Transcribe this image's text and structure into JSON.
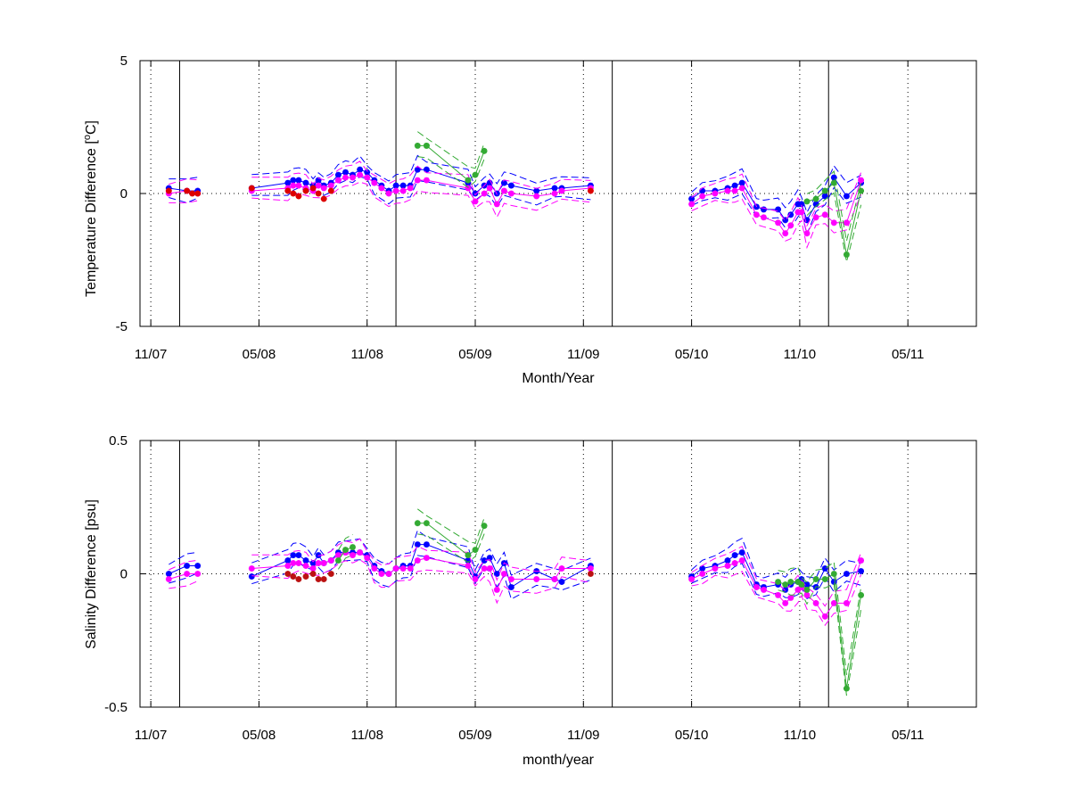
{
  "chart_data": [
    {
      "type": "line",
      "xlabel": "Month/Year",
      "ylabel_main": "Temperature Difference [",
      "ylabel_sup": "o",
      "ylabel_end": "C]",
      "ylim": [
        -5,
        5
      ],
      "yticks": [
        {
          "value": -5,
          "label": "-5"
        },
        {
          "value": 0,
          "label": "0"
        },
        {
          "value": 5,
          "label": "5"
        }
      ],
      "xticks": [
        {
          "value": 0,
          "label": "11/07"
        },
        {
          "value": 6,
          "label": "05/08"
        },
        {
          "value": 12,
          "label": "11/08"
        },
        {
          "value": 18,
          "label": "05/09"
        },
        {
          "value": 24,
          "label": "11/09"
        },
        {
          "value": 30,
          "label": "05/10"
        },
        {
          "value": 36,
          "label": "11/10"
        },
        {
          "value": 42,
          "label": "05/11"
        }
      ],
      "xlim": [
        -0.6,
        45.8
      ],
      "vlines": [
        1.6,
        13.6,
        25.6,
        37.6
      ],
      "grid": "dotted at x ticks and y=0",
      "series": [
        {
          "color": "#0000ff",
          "x": [
            1.0,
            2.0,
            2.6,
            5.6,
            7.6,
            7.9,
            8.2,
            8.6,
            9.0,
            9.3,
            9.6,
            10.0,
            10.4,
            10.8,
            11.2,
            11.6,
            12.0,
            12.4,
            12.8,
            13.2,
            13.6,
            14.0,
            14.4,
            14.8,
            15.3,
            17.6,
            18.0,
            18.5,
            18.8,
            19.2,
            19.6,
            20.0,
            21.4,
            22.4,
            22.8,
            24.4,
            30.0,
            30.6,
            31.3,
            32.0,
            32.4,
            32.8,
            33.6,
            34.0,
            34.8,
            35.2,
            35.5,
            35.9,
            36.1,
            36.4,
            36.9,
            37.4,
            37.9,
            38.6,
            39.4
          ],
          "y": [
            0.2,
            0.1,
            0.1,
            0.2,
            0.4,
            0.5,
            0.5,
            0.4,
            0.3,
            0.5,
            0.3,
            0.4,
            0.7,
            0.8,
            0.7,
            0.9,
            0.8,
            0.5,
            0.3,
            0.1,
            0.3,
            0.3,
            0.3,
            0.9,
            0.9,
            0.4,
            0.0,
            0.3,
            0.4,
            0.0,
            0.4,
            0.3,
            0.1,
            0.2,
            0.2,
            0.3,
            -0.2,
            0.1,
            0.1,
            0.2,
            0.3,
            0.4,
            -0.5,
            -0.6,
            -0.6,
            -1.0,
            -0.8,
            -0.4,
            -0.4,
            -1.0,
            -0.4,
            -0.1,
            0.6,
            -0.1,
            0.4
          ]
        },
        {
          "color": "#ff00ff",
          "x": [
            1.0,
            2.0,
            2.6,
            5.6,
            7.6,
            7.9,
            8.2,
            8.6,
            9.0,
            9.3,
            9.6,
            10.0,
            10.4,
            10.8,
            11.2,
            11.6,
            12.0,
            12.4,
            12.8,
            13.2,
            13.6,
            14.0,
            14.4,
            14.8,
            15.3,
            17.6,
            18.0,
            18.5,
            18.8,
            19.2,
            19.6,
            20.0,
            21.4,
            22.4,
            22.8,
            24.4,
            30.0,
            30.6,
            31.3,
            32.0,
            32.4,
            32.8,
            33.6,
            34.0,
            34.8,
            35.2,
            35.5,
            35.9,
            36.1,
            36.4,
            36.9,
            37.4,
            37.9,
            38.6,
            39.4
          ],
          "y": [
            0.0,
            0.1,
            0.0,
            0.1,
            0.2,
            0.3,
            0.3,
            0.2,
            0.1,
            0.3,
            0.2,
            0.3,
            0.5,
            0.6,
            0.6,
            0.7,
            0.6,
            0.4,
            0.2,
            0.0,
            0.1,
            0.1,
            0.2,
            0.5,
            0.5,
            0.2,
            -0.3,
            0.0,
            0.2,
            -0.4,
            0.1,
            0.0,
            -0.1,
            0.0,
            0.1,
            0.2,
            -0.4,
            -0.1,
            0.0,
            0.1,
            0.1,
            0.2,
            -0.8,
            -0.9,
            -1.1,
            -1.5,
            -1.2,
            -0.7,
            -0.7,
            -1.5,
            -0.9,
            -0.8,
            -1.1,
            -1.1,
            0.5
          ]
        },
        {
          "color": "#33aa33",
          "x": [
            14.8,
            15.3,
            15.3,
            17.6,
            18.0,
            18.5,
            36.4,
            36.9,
            37.4,
            37.9,
            38.6,
            39.4
          ],
          "y": [
            1.8,
            1.8,
            1.8,
            0.5,
            0.7,
            1.6,
            -0.3,
            -0.2,
            0.1,
            0.4,
            -2.3,
            0.1
          ]
        },
        {
          "color": "#dd0000",
          "x": [
            1.0,
            2.0,
            2.3,
            2.6,
            5.6,
            7.6,
            7.9,
            8.2,
            8.6,
            9.0,
            9.3,
            9.6,
            10.0,
            24.4
          ],
          "y": [
            0.1,
            0.1,
            0.0,
            0.0,
            0.2,
            0.1,
            0.0,
            -0.1,
            0.1,
            0.2,
            0.0,
            -0.2,
            0.1,
            0.1
          ]
        }
      ]
    },
    {
      "type": "line",
      "xlabel": "month/year",
      "ylabel_main": "Salinity Difference [psu]",
      "ylim": [
        -0.5,
        0.5
      ],
      "yticks": [
        {
          "value": -0.5,
          "label": "-0.5"
        },
        {
          "value": 0,
          "label": "0"
        },
        {
          "value": 0.5,
          "label": "0.5"
        }
      ],
      "xticks": [
        {
          "value": 0,
          "label": "11/07"
        },
        {
          "value": 6,
          "label": "05/08"
        },
        {
          "value": 12,
          "label": "11/08"
        },
        {
          "value": 18,
          "label": "05/09"
        },
        {
          "value": 24,
          "label": "11/09"
        },
        {
          "value": 30,
          "label": "05/10"
        },
        {
          "value": 36,
          "label": "11/10"
        },
        {
          "value": 42,
          "label": "05/11"
        }
      ],
      "xlim": [
        -0.6,
        45.8
      ],
      "vlines": [
        1.6,
        13.6,
        25.6,
        37.6
      ],
      "grid": "dotted at x ticks and y=0",
      "series": [
        {
          "color": "#0000ff",
          "x": [
            1.0,
            2.0,
            2.6,
            5.6,
            7.6,
            7.9,
            8.2,
            8.6,
            9.0,
            9.3,
            9.6,
            10.0,
            10.4,
            10.8,
            11.2,
            11.6,
            12.0,
            12.4,
            12.8,
            13.2,
            13.6,
            14.0,
            14.4,
            14.8,
            15.3,
            17.6,
            18.0,
            18.5,
            18.8,
            19.2,
            19.6,
            20.0,
            21.4,
            22.4,
            22.8,
            24.4,
            30.0,
            30.6,
            31.3,
            32.0,
            32.4,
            32.8,
            33.6,
            34.0,
            34.8,
            35.2,
            35.5,
            35.9,
            36.1,
            36.4,
            36.9,
            37.4,
            37.9,
            38.6,
            39.4
          ],
          "y": [
            0.0,
            0.03,
            0.03,
            -0.01,
            0.05,
            0.07,
            0.07,
            0.05,
            0.04,
            0.07,
            0.04,
            0.05,
            0.08,
            0.08,
            0.08,
            0.08,
            0.07,
            0.03,
            0.01,
            0.0,
            0.02,
            0.03,
            0.03,
            0.11,
            0.11,
            0.05,
            -0.01,
            0.05,
            0.06,
            0.0,
            0.04,
            -0.05,
            0.01,
            -0.02,
            -0.03,
            0.03,
            -0.01,
            0.02,
            0.03,
            0.05,
            0.07,
            0.08,
            -0.04,
            -0.05,
            -0.04,
            -0.06,
            -0.04,
            -0.03,
            -0.02,
            -0.04,
            -0.05,
            0.02,
            -0.03,
            0.0,
            0.01
          ]
        },
        {
          "color": "#ff00ff",
          "x": [
            1.0,
            2.0,
            2.6,
            5.6,
            7.6,
            7.9,
            8.2,
            8.6,
            9.0,
            9.3,
            9.6,
            10.0,
            10.4,
            10.8,
            11.2,
            11.6,
            12.0,
            12.4,
            12.8,
            13.2,
            13.6,
            14.0,
            14.4,
            14.8,
            15.3,
            17.6,
            18.0,
            18.5,
            18.8,
            19.2,
            19.6,
            20.0,
            21.4,
            22.4,
            22.8,
            24.4,
            30.0,
            30.6,
            31.3,
            32.0,
            32.4,
            32.8,
            33.6,
            34.0,
            34.8,
            35.2,
            35.5,
            35.9,
            36.1,
            36.4,
            36.9,
            37.4,
            37.9,
            38.6,
            39.4
          ],
          "y": [
            -0.02,
            0.0,
            0.0,
            0.02,
            0.03,
            0.04,
            0.04,
            0.03,
            0.02,
            0.04,
            0.04,
            0.05,
            0.07,
            0.08,
            0.07,
            0.08,
            0.06,
            0.02,
            0.0,
            0.0,
            0.02,
            0.02,
            0.02,
            0.05,
            0.06,
            0.03,
            -0.02,
            0.02,
            0.02,
            -0.06,
            0.0,
            -0.02,
            -0.02,
            -0.02,
            0.02,
            0.02,
            -0.02,
            0.0,
            0.02,
            0.03,
            0.04,
            0.05,
            -0.05,
            -0.06,
            -0.08,
            -0.11,
            -0.09,
            -0.06,
            -0.05,
            -0.08,
            -0.11,
            -0.16,
            -0.11,
            -0.11,
            0.05
          ]
        },
        {
          "color": "#33aa33",
          "x": [
            10.4,
            10.8,
            11.2,
            14.8,
            15.3,
            17.6,
            18.0,
            18.5,
            34.8,
            35.2,
            35.5,
            35.9,
            36.1,
            36.4,
            36.9,
            37.4,
            37.9,
            38.6,
            39.4
          ],
          "y": [
            0.05,
            0.09,
            0.1,
            0.19,
            0.19,
            0.07,
            0.09,
            0.18,
            -0.03,
            -0.04,
            -0.03,
            -0.03,
            -0.04,
            -0.06,
            -0.02,
            -0.02,
            0.0,
            -0.43,
            -0.08
          ]
        },
        {
          "color": "#bb1111",
          "x": [
            7.6,
            7.9,
            8.2,
            8.6,
            9.0,
            9.3,
            9.6,
            10.0,
            24.4
          ],
          "y": [
            0.0,
            -0.01,
            -0.02,
            -0.01,
            0.0,
            -0.02,
            -0.02,
            0.0,
            0.0
          ]
        }
      ]
    }
  ]
}
